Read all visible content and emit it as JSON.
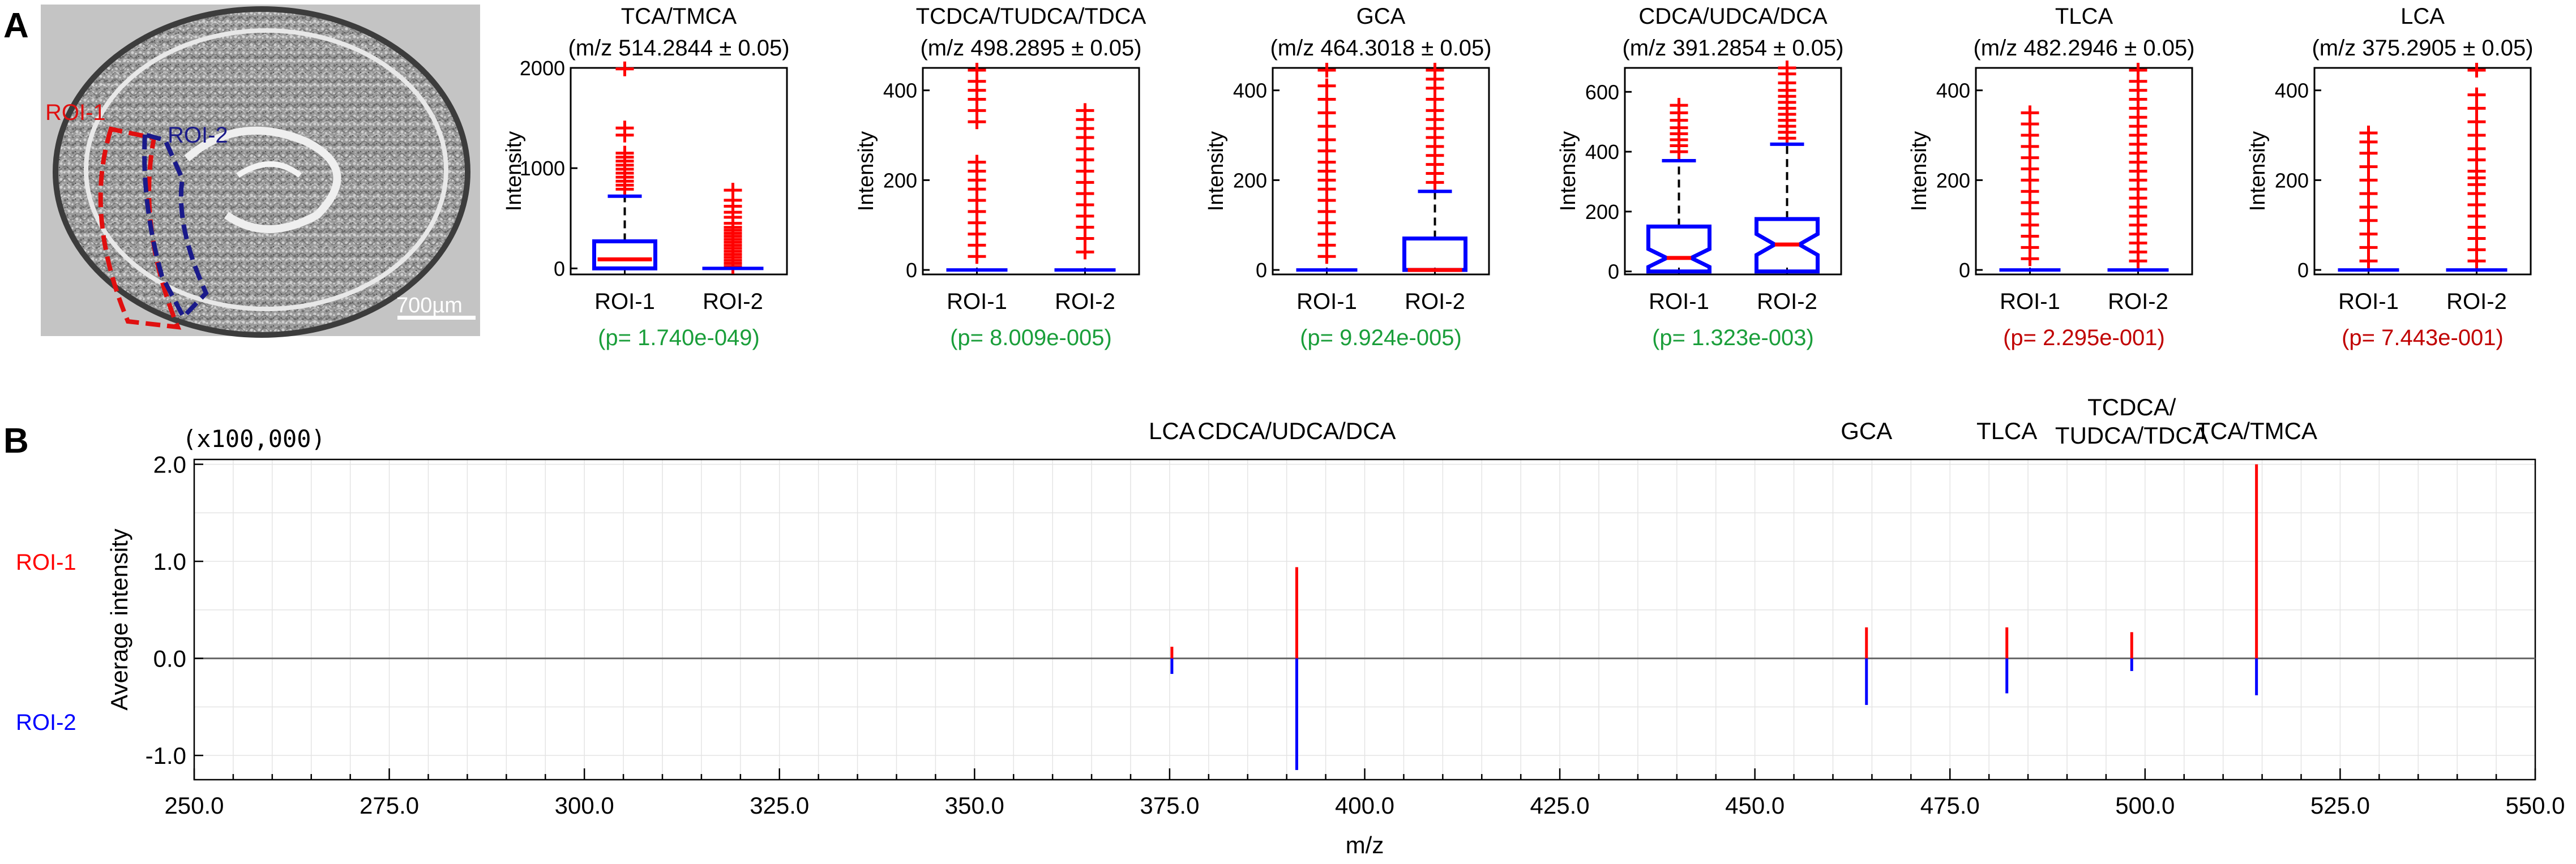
{
  "panel_labels": {
    "a": "A",
    "b": "B"
  },
  "tissue_image": {
    "roi1_label": "ROI-1",
    "roi2_label": "ROI-2",
    "scale_bar_label": "700µm",
    "roi1_color": "#e01010",
    "roi2_color": "#1a1a8a"
  },
  "colors": {
    "roi1": "#ff0000",
    "roi2": "#0000ff",
    "p_significant": "#1a9e3a",
    "p_not_significant": "#c00000"
  },
  "chart_data": [
    {
      "type": "box",
      "title": "TCA/TMCA",
      "subtitle": "(m/z 514.2844 ± 0.05)",
      "ylabel": "Intensity",
      "categories": [
        "ROI-1",
        "ROI-2"
      ],
      "ylim": [
        -60,
        2000
      ],
      "yticks": [
        0,
        1000,
        2000
      ],
      "p_value": "(p= 1.740e-049)",
      "significant": true,
      "boxes": [
        {
          "q1": 0,
          "median": 90,
          "q3": 270,
          "whisker_low": 0,
          "whisker_high": 720,
          "notched": false,
          "outliers": [
            790,
            830,
            870,
            910,
            950,
            990,
            1030,
            1070,
            1110,
            1150,
            1330,
            1400,
            1990
          ]
        },
        {
          "q1": 0,
          "median": 0,
          "q3": 0,
          "whisker_low": 0,
          "whisker_high": 0,
          "notched": false,
          "outliers": [
            20,
            50,
            80,
            110,
            140,
            170,
            200,
            230,
            260,
            290,
            320,
            350,
            380,
            410,
            450,
            510,
            560,
            620,
            680,
            780
          ]
        }
      ]
    },
    {
      "type": "box",
      "title": "TCDCA/TUDCA/TDCA",
      "subtitle": "(m/z 498.2895 ± 0.05)",
      "ylabel": "Intensity",
      "categories": [
        "ROI-1",
        "ROI-2"
      ],
      "ylim": [
        -10,
        450
      ],
      "yticks": [
        0,
        200,
        400
      ],
      "p_value": "(p= 8.009e-005)",
      "significant": true,
      "boxes": [
        {
          "q1": 0,
          "median": 0,
          "q3": 0,
          "whisker_low": 0,
          "whisker_high": 0,
          "notched": false,
          "outliers": [
            30,
            55,
            80,
            105,
            130,
            155,
            180,
            200,
            220,
            240,
            330,
            355,
            380,
            400,
            420,
            445
          ]
        },
        {
          "q1": 0,
          "median": 0,
          "q3": 0,
          "whisker_low": 0,
          "whisker_high": 0,
          "notched": false,
          "outliers": [
            40,
            70,
            95,
            120,
            145,
            170,
            195,
            220,
            245,
            270,
            295,
            315,
            335,
            355
          ]
        }
      ]
    },
    {
      "type": "box",
      "title": "GCA",
      "subtitle": "(m/z 464.3018 ± 0.05)",
      "ylabel": "Intensity",
      "categories": [
        "ROI-1",
        "ROI-2"
      ],
      "ylim": [
        -10,
        450
      ],
      "yticks": [
        0,
        200,
        400
      ],
      "p_value": "(p= 9.924e-005)",
      "significant": true,
      "boxes": [
        {
          "q1": 0,
          "median": 0,
          "q3": 0,
          "whisker_low": 0,
          "whisker_high": 0,
          "notched": false,
          "outliers": [
            30,
            55,
            80,
            105,
            130,
            155,
            180,
            200,
            220,
            240,
            265,
            290,
            320,
            350,
            380,
            410,
            445
          ]
        },
        {
          "q1": 0,
          "median": 0,
          "q3": 70,
          "whisker_low": 0,
          "whisker_high": 175,
          "notched": false,
          "outliers": [
            195,
            215,
            235,
            255,
            275,
            295,
            315,
            335,
            355,
            380,
            405,
            425,
            445
          ]
        }
      ]
    },
    {
      "type": "box",
      "title": "CDCA/UDCA/DCA",
      "subtitle": "(m/z 391.2854 ± 0.05)",
      "ylabel": "Intensity",
      "categories": [
        "ROI-1",
        "ROI-2"
      ],
      "ylim": [
        -10,
        680
      ],
      "yticks": [
        0,
        200,
        400,
        600
      ],
      "p_value": "(p= 1.323e-003)",
      "significant": true,
      "boxes": [
        {
          "q1": 0,
          "median": 45,
          "q3": 150,
          "whisker_low": 0,
          "whisker_high": 370,
          "notched": true,
          "outliers": [
            400,
            420,
            440,
            460,
            480,
            505,
            530,
            555
          ]
        },
        {
          "q1": 0,
          "median": 90,
          "q3": 175,
          "whisker_low": 0,
          "whisker_high": 425,
          "notched": true,
          "outliers": [
            445,
            465,
            485,
            505,
            525,
            545,
            565,
            585,
            605,
            630,
            660,
            680
          ]
        }
      ]
    },
    {
      "type": "box",
      "title": "TLCA",
      "subtitle": "(m/z 482.2946 ± 0.05)",
      "ylabel": "Intensity",
      "categories": [
        "ROI-1",
        "ROI-2"
      ],
      "ylim": [
        -10,
        450
      ],
      "yticks": [
        0,
        200,
        400
      ],
      "p_value": "(p= 2.295e-001)",
      "significant": false,
      "boxes": [
        {
          "q1": 0,
          "median": 0,
          "q3": 0,
          "whisker_low": 0,
          "whisker_high": 0,
          "notched": false,
          "outliers": [
            25,
            50,
            75,
            100,
            125,
            150,
            175,
            200,
            225,
            250,
            275,
            300,
            325,
            350
          ]
        },
        {
          "q1": 0,
          "median": 0,
          "q3": 0,
          "whisker_low": 0,
          "whisker_high": 0,
          "notched": false,
          "outliers": [
            20,
            40,
            60,
            80,
            100,
            120,
            140,
            160,
            180,
            200,
            220,
            240,
            260,
            280,
            300,
            320,
            340,
            360,
            380,
            400,
            420,
            445
          ]
        }
      ]
    },
    {
      "type": "box",
      "title": "LCA",
      "subtitle": "(m/z 375.2905 ± 0.05)",
      "ylabel": "Intensity",
      "categories": [
        "ROI-1",
        "ROI-2"
      ],
      "ylim": [
        -10,
        450
      ],
      "yticks": [
        0,
        200,
        400
      ],
      "p_value": "(p= 7.443e-001)",
      "significant": false,
      "boxes": [
        {
          "q1": 0,
          "median": 0,
          "q3": 0,
          "whisker_low": 0,
          "whisker_high": 0,
          "notched": false,
          "outliers": [
            20,
            50,
            80,
            110,
            140,
            170,
            200,
            230,
            260,
            285,
            305
          ]
        },
        {
          "q1": 0,
          "median": 0,
          "q3": 0,
          "whisker_low": 0,
          "whisker_high": 0,
          "notched": false,
          "outliers": [
            20,
            45,
            70,
            95,
            120,
            145,
            170,
            190,
            205,
            220,
            245,
            270,
            300,
            330,
            360,
            390,
            445
          ]
        }
      ]
    },
    {
      "type": "bar",
      "subtype": "mirror-spectrum",
      "multiplier_label": "(x100,000)",
      "ylabel": "Average  intensity",
      "xlabel": "m/z",
      "xlim": [
        250,
        550
      ],
      "ylim": [
        -1.25,
        2.05
      ],
      "xticks": [
        "250.0",
        "275.0",
        "300.0",
        "325.0",
        "350.0",
        "375.0",
        "400.0",
        "425.0",
        "450.0",
        "475.0",
        "500.0",
        "525.0",
        "550.0"
      ],
      "yticks": [
        "-1.0",
        "0.0",
        "1.0",
        "2.0"
      ],
      "series": [
        {
          "name": "ROI-1",
          "color": "#ff0000"
        },
        {
          "name": "ROI-2",
          "color": "#0000ff"
        }
      ],
      "peaks": [
        {
          "label": "LCA",
          "mz": 375.29,
          "roi1": 0.12,
          "roi2": -0.16
        },
        {
          "label": "CDCA/UDCA/DCA",
          "mz": 391.29,
          "roi1": 0.94,
          "roi2": -1.15
        },
        {
          "label": "GCA",
          "mz": 464.3,
          "roi1": 0.32,
          "roi2": -0.48
        },
        {
          "label": "TLCA",
          "mz": 482.29,
          "roi1": 0.32,
          "roi2": -0.36
        },
        {
          "label": "TCDCA/\nTUDCA/TDCA",
          "mz": 498.29,
          "roi1": 0.27,
          "roi2": -0.13
        },
        {
          "label": "TCA/TMCA",
          "mz": 514.28,
          "roi1": 2.0,
          "roi2": -0.38
        }
      ]
    }
  ]
}
